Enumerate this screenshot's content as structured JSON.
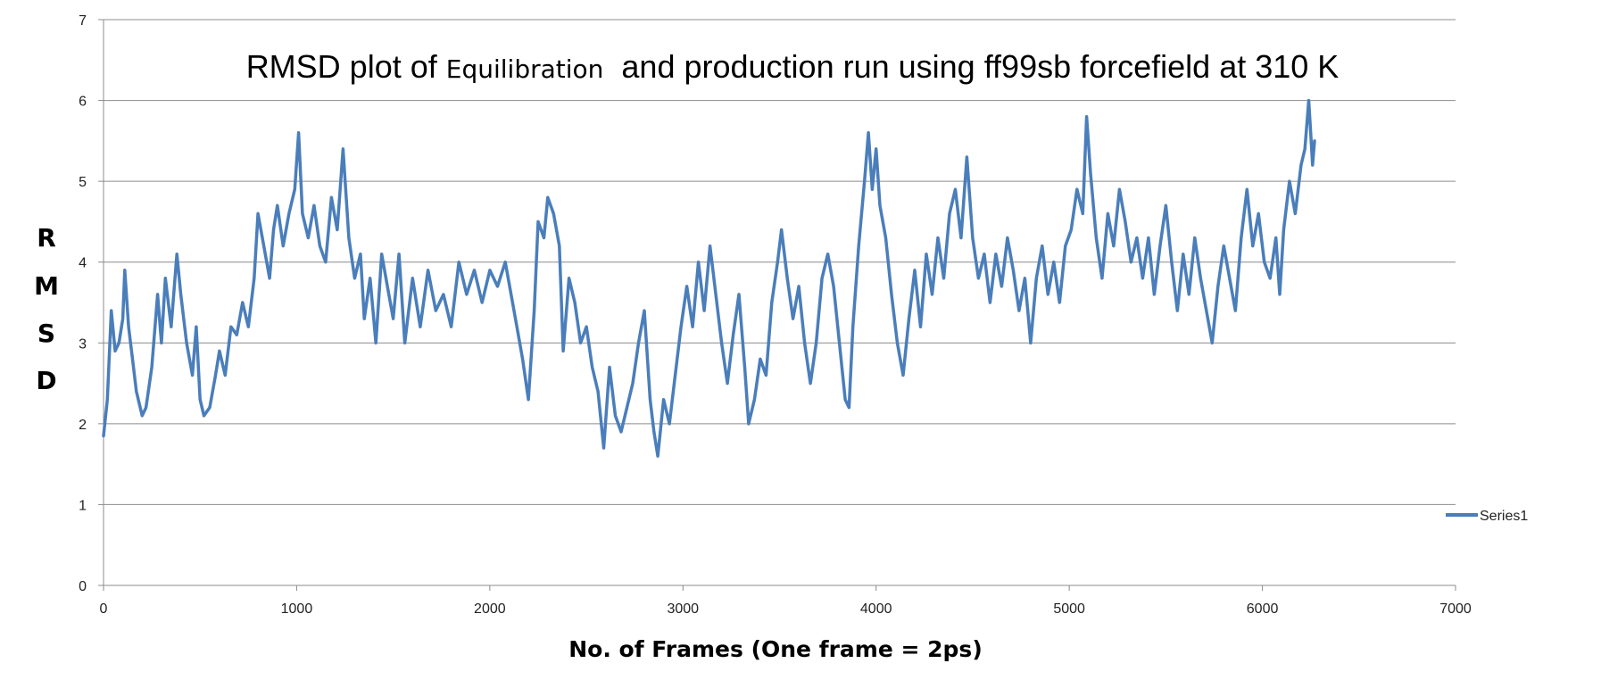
{
  "chart_data": {
    "type": "line",
    "title_parts": [
      "RMSD plot of ",
      "Equilibration",
      "  and production run using ff99sb forcefield at 310 K"
    ],
    "xlabel": "No. of Frames  (One frame = 2ps)",
    "ylabel_letters": [
      "R",
      "M",
      "S",
      "D"
    ],
    "xlim": [
      0,
      7000
    ],
    "ylim": [
      0,
      7
    ],
    "x_ticks": [
      "0",
      "1000",
      "2000",
      "3000",
      "4000",
      "5000",
      "6000",
      "7000"
    ],
    "y_ticks": [
      "0",
      "1",
      "2",
      "3",
      "4",
      "5",
      "6",
      "7"
    ],
    "grid": "horizontal",
    "legend_position": "right",
    "series": [
      {
        "name": "Series1",
        "color": "#4a7ebb",
        "points": [
          [
            0,
            1.85
          ],
          [
            20,
            2.3
          ],
          [
            40,
            3.4
          ],
          [
            60,
            2.9
          ],
          [
            80,
            3.0
          ],
          [
            100,
            3.3
          ],
          [
            110,
            3.9
          ],
          [
            130,
            3.2
          ],
          [
            150,
            2.8
          ],
          [
            170,
            2.4
          ],
          [
            200,
            2.1
          ],
          [
            220,
            2.2
          ],
          [
            250,
            2.7
          ],
          [
            280,
            3.6
          ],
          [
            300,
            3.0
          ],
          [
            320,
            3.8
          ],
          [
            350,
            3.2
          ],
          [
            380,
            4.1
          ],
          [
            400,
            3.6
          ],
          [
            430,
            3.0
          ],
          [
            460,
            2.6
          ],
          [
            480,
            3.2
          ],
          [
            500,
            2.3
          ],
          [
            520,
            2.1
          ],
          [
            550,
            2.2
          ],
          [
            580,
            2.6
          ],
          [
            600,
            2.9
          ],
          [
            630,
            2.6
          ],
          [
            660,
            3.2
          ],
          [
            690,
            3.1
          ],
          [
            720,
            3.5
          ],
          [
            750,
            3.2
          ],
          [
            780,
            3.8
          ],
          [
            800,
            4.6
          ],
          [
            830,
            4.2
          ],
          [
            860,
            3.8
          ],
          [
            880,
            4.4
          ],
          [
            900,
            4.7
          ],
          [
            930,
            4.2
          ],
          [
            960,
            4.6
          ],
          [
            990,
            4.9
          ],
          [
            1010,
            5.6
          ],
          [
            1030,
            4.6
          ],
          [
            1060,
            4.3
          ],
          [
            1090,
            4.7
          ],
          [
            1120,
            4.2
          ],
          [
            1150,
            4.0
          ],
          [
            1180,
            4.8
          ],
          [
            1210,
            4.4
          ],
          [
            1240,
            5.4
          ],
          [
            1270,
            4.3
          ],
          [
            1300,
            3.8
          ],
          [
            1330,
            4.1
          ],
          [
            1350,
            3.3
          ],
          [
            1380,
            3.8
          ],
          [
            1410,
            3.0
          ],
          [
            1440,
            4.1
          ],
          [
            1470,
            3.7
          ],
          [
            1500,
            3.3
          ],
          [
            1530,
            4.1
          ],
          [
            1560,
            3.0
          ],
          [
            1600,
            3.8
          ],
          [
            1640,
            3.2
          ],
          [
            1680,
            3.9
          ],
          [
            1720,
            3.4
          ],
          [
            1760,
            3.6
          ],
          [
            1800,
            3.2
          ],
          [
            1840,
            4.0
          ],
          [
            1880,
            3.6
          ],
          [
            1920,
            3.9
          ],
          [
            1960,
            3.5
          ],
          [
            2000,
            3.9
          ],
          [
            2040,
            3.7
          ],
          [
            2080,
            4.0
          ],
          [
            2110,
            3.6
          ],
          [
            2140,
            3.2
          ],
          [
            2170,
            2.8
          ],
          [
            2200,
            2.3
          ],
          [
            2230,
            3.4
          ],
          [
            2250,
            4.5
          ],
          [
            2280,
            4.3
          ],
          [
            2300,
            4.8
          ],
          [
            2330,
            4.6
          ],
          [
            2360,
            4.2
          ],
          [
            2380,
            2.9
          ],
          [
            2410,
            3.8
          ],
          [
            2440,
            3.5
          ],
          [
            2470,
            3.0
          ],
          [
            2500,
            3.2
          ],
          [
            2530,
            2.7
          ],
          [
            2560,
            2.4
          ],
          [
            2590,
            1.7
          ],
          [
            2620,
            2.7
          ],
          [
            2650,
            2.1
          ],
          [
            2680,
            1.9
          ],
          [
            2710,
            2.2
          ],
          [
            2740,
            2.5
          ],
          [
            2770,
            3.0
          ],
          [
            2800,
            3.4
          ],
          [
            2830,
            2.3
          ],
          [
            2850,
            1.9
          ],
          [
            2870,
            1.6
          ],
          [
            2900,
            2.3
          ],
          [
            2930,
            2.0
          ],
          [
            2960,
            2.6
          ],
          [
            2990,
            3.2
          ],
          [
            3020,
            3.7
          ],
          [
            3050,
            3.2
          ],
          [
            3080,
            4.0
          ],
          [
            3110,
            3.4
          ],
          [
            3140,
            4.2
          ],
          [
            3170,
            3.6
          ],
          [
            3200,
            3.0
          ],
          [
            3230,
            2.5
          ],
          [
            3260,
            3.1
          ],
          [
            3290,
            3.6
          ],
          [
            3320,
            2.7
          ],
          [
            3340,
            2.0
          ],
          [
            3370,
            2.3
          ],
          [
            3400,
            2.8
          ],
          [
            3430,
            2.6
          ],
          [
            3460,
            3.5
          ],
          [
            3490,
            4.0
          ],
          [
            3510,
            4.4
          ],
          [
            3540,
            3.8
          ],
          [
            3570,
            3.3
          ],
          [
            3600,
            3.7
          ],
          [
            3630,
            3.0
          ],
          [
            3660,
            2.5
          ],
          [
            3690,
            3.0
          ],
          [
            3720,
            3.8
          ],
          [
            3750,
            4.1
          ],
          [
            3780,
            3.7
          ],
          [
            3810,
            3.0
          ],
          [
            3840,
            2.3
          ],
          [
            3860,
            2.2
          ],
          [
            3880,
            3.2
          ],
          [
            3910,
            4.2
          ],
          [
            3940,
            5.0
          ],
          [
            3960,
            5.6
          ],
          [
            3980,
            4.9
          ],
          [
            4000,
            5.4
          ],
          [
            4020,
            4.7
          ],
          [
            4050,
            4.3
          ],
          [
            4080,
            3.6
          ],
          [
            4110,
            3.0
          ],
          [
            4140,
            2.6
          ],
          [
            4170,
            3.3
          ],
          [
            4200,
            3.9
          ],
          [
            4230,
            3.2
          ],
          [
            4260,
            4.1
          ],
          [
            4290,
            3.6
          ],
          [
            4320,
            4.3
          ],
          [
            4350,
            3.8
          ],
          [
            4380,
            4.6
          ],
          [
            4410,
            4.9
          ],
          [
            4440,
            4.3
          ],
          [
            4470,
            5.3
          ],
          [
            4500,
            4.3
          ],
          [
            4530,
            3.8
          ],
          [
            4560,
            4.1
          ],
          [
            4590,
            3.5
          ],
          [
            4620,
            4.1
          ],
          [
            4650,
            3.7
          ],
          [
            4680,
            4.3
          ],
          [
            4710,
            3.9
          ],
          [
            4740,
            3.4
          ],
          [
            4770,
            3.8
          ],
          [
            4800,
            3.0
          ],
          [
            4830,
            3.8
          ],
          [
            4860,
            4.2
          ],
          [
            4890,
            3.6
          ],
          [
            4920,
            4.0
          ],
          [
            4950,
            3.5
          ],
          [
            4980,
            4.2
          ],
          [
            5010,
            4.4
          ],
          [
            5040,
            4.9
          ],
          [
            5070,
            4.6
          ],
          [
            5090,
            5.8
          ],
          [
            5110,
            5.1
          ],
          [
            5140,
            4.3
          ],
          [
            5170,
            3.8
          ],
          [
            5200,
            4.6
          ],
          [
            5230,
            4.2
          ],
          [
            5260,
            4.9
          ],
          [
            5290,
            4.5
          ],
          [
            5320,
            4.0
          ],
          [
            5350,
            4.3
          ],
          [
            5380,
            3.8
          ],
          [
            5410,
            4.3
          ],
          [
            5440,
            3.6
          ],
          [
            5470,
            4.2
          ],
          [
            5500,
            4.7
          ],
          [
            5530,
            4.0
          ],
          [
            5560,
            3.4
          ],
          [
            5590,
            4.1
          ],
          [
            5620,
            3.6
          ],
          [
            5650,
            4.3
          ],
          [
            5680,
            3.8
          ],
          [
            5710,
            3.4
          ],
          [
            5740,
            3.0
          ],
          [
            5770,
            3.7
          ],
          [
            5800,
            4.2
          ],
          [
            5830,
            3.8
          ],
          [
            5860,
            3.4
          ],
          [
            5890,
            4.3
          ],
          [
            5920,
            4.9
          ],
          [
            5950,
            4.2
          ],
          [
            5980,
            4.6
          ],
          [
            6010,
            4.0
          ],
          [
            6040,
            3.8
          ],
          [
            6070,
            4.3
          ],
          [
            6090,
            3.6
          ],
          [
            6110,
            4.4
          ],
          [
            6140,
            5.0
          ],
          [
            6170,
            4.6
          ],
          [
            6200,
            5.2
          ],
          [
            6220,
            5.4
          ],
          [
            6240,
            6.0
          ],
          [
            6250,
            5.6
          ],
          [
            6260,
            5.2
          ],
          [
            6270,
            5.5
          ]
        ]
      }
    ]
  }
}
